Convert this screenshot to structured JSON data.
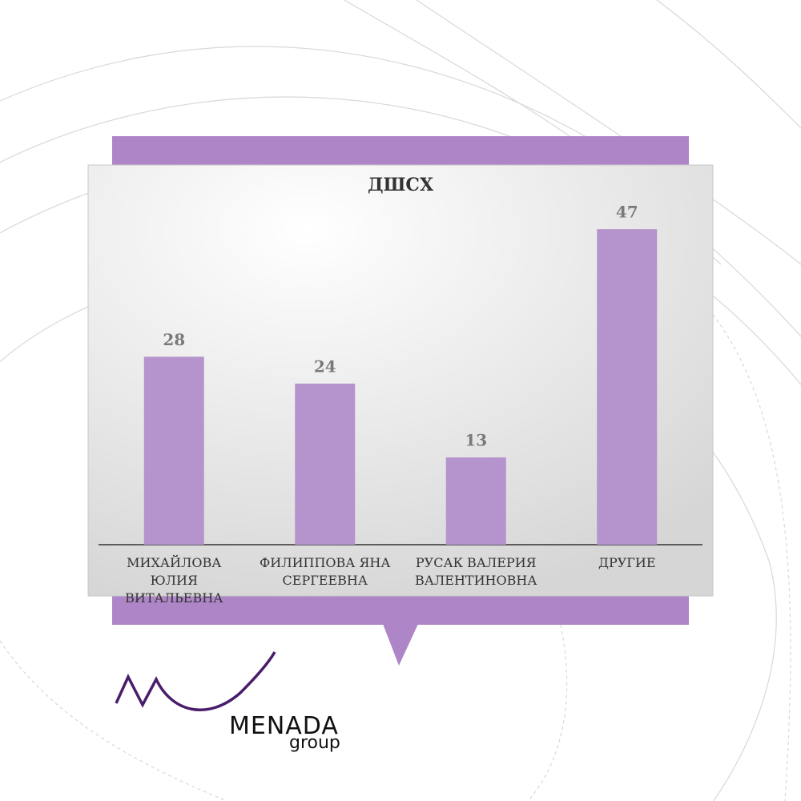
{
  "chart_data": {
    "type": "bar",
    "title": "ДШСХ",
    "categories": [
      "МИХАЙЛОВА ЮЛИЯ ВИТАЛЬЕВНА",
      "ФИЛИППОВА ЯНА СЕРГЕЕВНА",
      "РУСАК ВАЛЕРИЯ ВАЛЕНТИНОВНА",
      "ДРУГИЕ"
    ],
    "values": [
      28,
      24,
      13,
      47
    ],
    "color": "#b593cc"
  },
  "logo": {
    "name": "MENADA",
    "sub": "group"
  }
}
